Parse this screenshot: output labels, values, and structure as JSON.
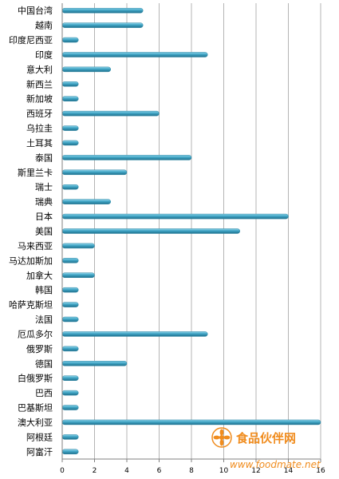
{
  "chart_data": {
    "type": "bar",
    "orientation": "horizontal",
    "categories": [
      "中国台湾",
      "越南",
      "印度尼西亚",
      "印度",
      "意大利",
      "新西兰",
      "新加坡",
      "西班牙",
      "乌拉圭",
      "土耳其",
      "泰国",
      "斯里兰卡",
      "瑞士",
      "瑞典",
      "日本",
      "美国",
      "马来西亚",
      "马达加斯加",
      "加拿大",
      "韩国",
      "哈萨克斯坦",
      "法国",
      "厄瓜多尔",
      "俄罗斯",
      "德国",
      "白俄罗斯",
      "巴西",
      "巴基斯坦",
      "澳大利亚",
      "阿根廷",
      "阿富汗"
    ],
    "values": [
      5,
      5,
      1,
      9,
      3,
      1,
      1,
      6,
      1,
      1,
      8,
      4,
      1,
      3,
      14,
      11,
      2,
      1,
      2,
      1,
      1,
      1,
      9,
      1,
      4,
      1,
      1,
      1,
      16,
      1,
      1
    ],
    "xlim": [
      0,
      16
    ],
    "xticks": [
      0,
      2,
      4,
      6,
      8,
      10,
      12,
      14,
      16
    ],
    "grid": true,
    "bar_color": "#3fa4c4",
    "title": "",
    "xlabel": "",
    "ylabel": ""
  },
  "watermark": {
    "brand": "食品伙伴网",
    "url": "www.foodmate.net",
    "icon": "flower-logo-icon",
    "color": "#f08c1e"
  }
}
